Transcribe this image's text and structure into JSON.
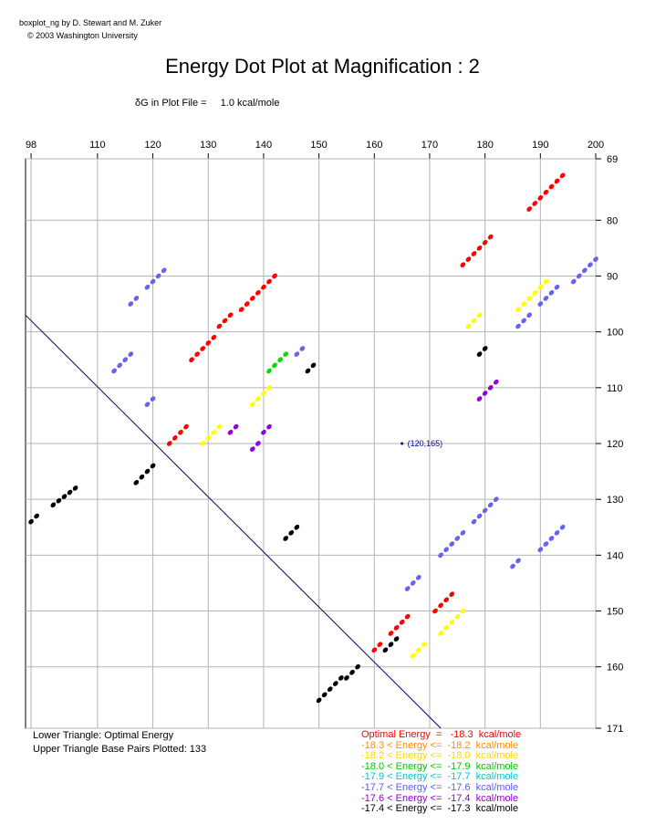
{
  "credits": {
    "line1": "boxplot_ng by D. Stewart and M. Zuker",
    "line2": "© 2003  Washington University"
  },
  "title": "Energy Dot Plot at Magnification : 2",
  "delta_g": {
    "label": "δG in Plot File =",
    "value": "1.0 kcal/mole"
  },
  "footer": {
    "lower": "Lower Triangle: Optimal Energy",
    "upper": "Upper Triangle Base Pairs Plotted: 133"
  },
  "legend": [
    {
      "text": "Optimal Energy  =   -18.3  kcal/mole",
      "color": "#ff0000"
    },
    {
      "text": "-18.3 < Energy <=  -18.2  kcal/mole",
      "color": "#ff8c00"
    },
    {
      "text": "-18.2 < Energy <=  -18.0  kcal/mole",
      "color": "#ffd700"
    },
    {
      "text": "-18.0 < Energy <=  -17.9  kcal/mole",
      "color": "#00c800"
    },
    {
      "text": "-17.9 < Energy <=  -17.7  kcal/mole",
      "color": "#00c8c8"
    },
    {
      "text": "-17.7 < Energy <=  -17.6  kcal/mole",
      "color": "#5a5aff"
    },
    {
      "text": "-17.6 < Energy <=  -17.4  kcal/mole",
      "color": "#9400d3"
    },
    {
      "text": "-17.4 < Energy <=  -17.3  kcal/mole",
      "color": "#000000"
    }
  ],
  "colors": {
    "red": "#ff0000",
    "yellow": "#ffff00",
    "green": "#00e000",
    "blue": "#6464f0",
    "purple": "#9000e0",
    "black": "#000000",
    "marker": "#0000a0"
  },
  "chart_data": {
    "type": "scatter",
    "title": "Energy Dot Plot at Magnification : 2",
    "x_ticks": [
      98,
      110,
      120,
      130,
      140,
      150,
      160,
      170,
      180,
      190,
      200
    ],
    "y_ticks": [
      69,
      80,
      90,
      100,
      110,
      120,
      130,
      140,
      150,
      160,
      171
    ],
    "xlim": [
      97,
      200
    ],
    "ylim": [
      69,
      171
    ],
    "grid": true,
    "diagonal": true,
    "marker": {
      "x": 165,
      "y": 120,
      "label": "(120,165)"
    },
    "segments": [
      {
        "color": "red",
        "x": [
          188,
          194
        ],
        "y": [
          78,
          72
        ]
      },
      {
        "color": "red",
        "x": [
          176,
          181
        ],
        "y": [
          88,
          83
        ]
      },
      {
        "color": "blue",
        "x": [
          116,
          117
        ],
        "y": [
          95,
          94
        ]
      },
      {
        "color": "blue",
        "x": [
          119,
          122
        ],
        "y": [
          92,
          89
        ]
      },
      {
        "color": "red",
        "x": [
          132,
          134
        ],
        "y": [
          99,
          97
        ]
      },
      {
        "color": "red",
        "x": [
          136,
          142
        ],
        "y": [
          96,
          90
        ]
      },
      {
        "color": "yellow",
        "x": [
          177,
          179
        ],
        "y": [
          99,
          97
        ]
      },
      {
        "color": "yellow",
        "x": [
          186,
          191
        ],
        "y": [
          96,
          91
        ]
      },
      {
        "color": "blue",
        "x": [
          186,
          188
        ],
        "y": [
          99,
          97
        ]
      },
      {
        "color": "blue",
        "x": [
          190,
          193
        ],
        "y": [
          95,
          92
        ]
      },
      {
        "color": "blue",
        "x": [
          196,
          200
        ],
        "y": [
          91,
          87
        ]
      },
      {
        "color": "red",
        "x": [
          127,
          131
        ],
        "y": [
          105,
          101
        ]
      },
      {
        "color": "blue",
        "x": [
          113,
          116
        ],
        "y": [
          107,
          104
        ]
      },
      {
        "color": "green",
        "x": [
          141,
          144
        ],
        "y": [
          107,
          104
        ]
      },
      {
        "color": "blue",
        "x": [
          146,
          147
        ],
        "y": [
          104,
          103
        ]
      },
      {
        "color": "black",
        "x": [
          148,
          149
        ],
        "y": [
          107,
          106
        ]
      },
      {
        "color": "black",
        "x": [
          179,
          180
        ],
        "y": [
          104,
          103
        ]
      },
      {
        "color": "blue",
        "x": [
          119,
          120
        ],
        "y": [
          113,
          112
        ]
      },
      {
        "color": "yellow",
        "x": [
          138,
          141
        ],
        "y": [
          113,
          110
        ]
      },
      {
        "color": "purple",
        "x": [
          179,
          182
        ],
        "y": [
          112,
          109
        ]
      },
      {
        "color": "red",
        "x": [
          123,
          126
        ],
        "y": [
          120,
          117
        ]
      },
      {
        "color": "yellow",
        "x": [
          129,
          132
        ],
        "y": [
          120,
          117
        ]
      },
      {
        "color": "purple",
        "x": [
          134,
          135
        ],
        "y": [
          118,
          117
        ]
      },
      {
        "color": "purple",
        "x": [
          138,
          139
        ],
        "y": [
          121,
          120
        ]
      },
      {
        "color": "purple",
        "x": [
          140,
          141
        ],
        "y": [
          118,
          117
        ]
      },
      {
        "color": "black",
        "x": [
          98,
          99
        ],
        "y": [
          134,
          133
        ]
      },
      {
        "color": "black",
        "x": [
          102,
          106
        ],
        "y": [
          131,
          128
        ]
      },
      {
        "color": "black",
        "x": [
          117,
          120
        ],
        "y": [
          127,
          124
        ]
      },
      {
        "color": "black",
        "x": [
          144,
          146
        ],
        "y": [
          137,
          135
        ]
      },
      {
        "color": "blue",
        "x": [
          178,
          182
        ],
        "y": [
          134,
          130
        ]
      },
      {
        "color": "blue",
        "x": [
          172,
          176
        ],
        "y": [
          140,
          136
        ]
      },
      {
        "color": "blue",
        "x": [
          185,
          186
        ],
        "y": [
          142,
          141
        ]
      },
      {
        "color": "blue",
        "x": [
          190,
          194
        ],
        "y": [
          139,
          135
        ]
      },
      {
        "color": "blue",
        "x": [
          166,
          168
        ],
        "y": [
          146,
          144
        ]
      },
      {
        "color": "red",
        "x": [
          171,
          174
        ],
        "y": [
          150,
          147
        ]
      },
      {
        "color": "yellow",
        "x": [
          172,
          176
        ],
        "y": [
          154,
          150
        ]
      },
      {
        "color": "red",
        "x": [
          163,
          166
        ],
        "y": [
          154,
          151
        ]
      },
      {
        "color": "red",
        "x": [
          160,
          161
        ],
        "y": [
          157,
          156
        ]
      },
      {
        "color": "black",
        "x": [
          162,
          164
        ],
        "y": [
          157,
          155
        ]
      },
      {
        "color": "yellow",
        "x": [
          167,
          169
        ],
        "y": [
          158,
          156
        ]
      },
      {
        "color": "black",
        "x": [
          150,
          154
        ],
        "y": [
          166,
          162
        ]
      },
      {
        "color": "black",
        "x": [
          155,
          157
        ],
        "y": [
          162,
          160
        ]
      }
    ]
  }
}
